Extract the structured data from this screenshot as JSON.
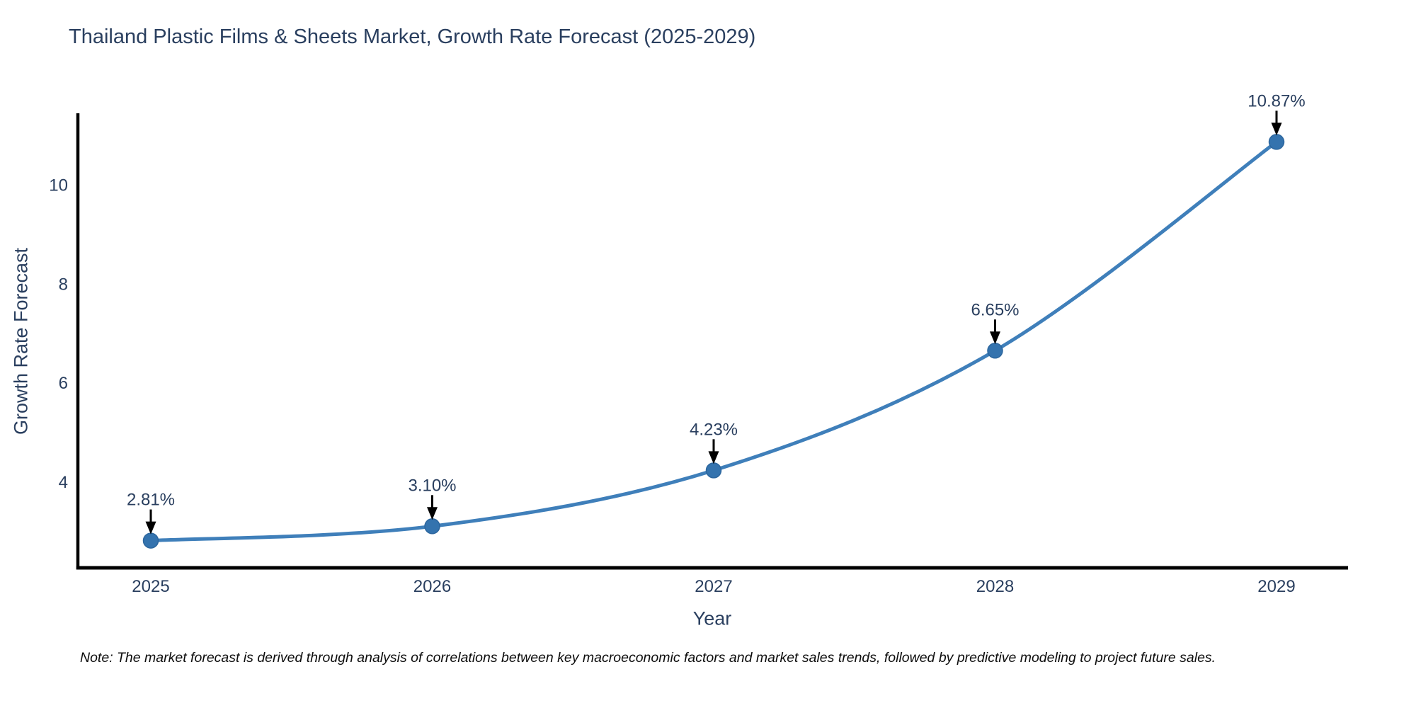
{
  "title": "Thailand Plastic Films & Sheets Market, Growth Rate Forecast (2025-2029)",
  "note": "Note: The market forecast is derived through analysis of correlations between key macroeconomic factors and market sales trends, followed by predictive modeling to project future sales.",
  "chart_data": {
    "type": "line",
    "title": "Thailand Plastic Films & Sheets Market, Growth Rate Forecast (2025-2029)",
    "x": [
      2025,
      2026,
      2027,
      2028,
      2029
    ],
    "xtick_labels": [
      "2025",
      "2026",
      "2027",
      "2028",
      "2029"
    ],
    "series": [
      {
        "name": "Growth Rate Forecast",
        "values": [
          2.81,
          3.1,
          4.23,
          6.65,
          10.87
        ],
        "point_labels": [
          "2.81%",
          "3.10%",
          "4.23%",
          "6.65%",
          "10.87%"
        ]
      }
    ],
    "xlabel": "Year",
    "ylabel": "Growth Rate Forecast",
    "yticks": [
      4,
      6,
      8,
      10
    ],
    "ylim": [
      2.26,
      11.42
    ],
    "line_shape": "spline",
    "grid": false,
    "legend_position": "none",
    "colors": {
      "line": "#3f7fba",
      "marker": "#3473ae",
      "marker_edge": "#2c669e",
      "annotation_arrow": "#000000",
      "text": "#2a3f5f",
      "axis_line": "#000000",
      "background": "#ffffff"
    }
  }
}
